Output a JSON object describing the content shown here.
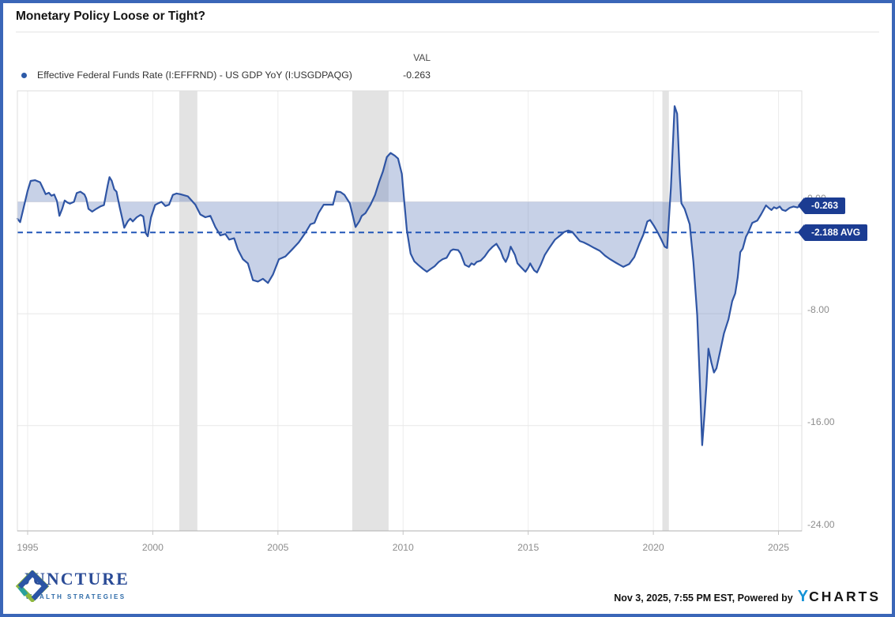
{
  "window": {
    "border_color": "#3a66b8"
  },
  "header": {
    "title": "Monetary Policy Loose or Tight?"
  },
  "legend": {
    "val_header": "VAL",
    "series_label": "Effective Federal Funds Rate (I:EFFRND) - US GDP YoY (I:USGDPAQG)",
    "series_value": "-0.263",
    "dot_color": "#2d5aa8"
  },
  "chart_data": {
    "type": "area",
    "title": "Monetary Policy Loose or Tight?",
    "series_name": "Effective Federal Funds Rate (I:EFFRND) - US GDP YoY (I:USGDPAQG)",
    "xlabel": "",
    "ylabel": "",
    "grid": true,
    "legend_position": "top-left",
    "xlim": [
      1994.59,
      2025.93
    ],
    "ylim": [
      -23.53,
      7.94
    ],
    "x_ticks": [
      1995,
      2000,
      2005,
      2010,
      2015,
      2020,
      2025
    ],
    "x_tick_labels": [
      "1995",
      "2000",
      "2005",
      "2010",
      "2015",
      "2020",
      "2025"
    ],
    "y_ticks": [
      0,
      -8,
      -16,
      -24
    ],
    "y_tick_labels": [
      "0.00",
      "-8.00",
      "-16.00",
      "-24.00"
    ],
    "average": -2.188,
    "average_label": "-2.188 AVG",
    "last_value": -0.263,
    "last_value_label": "-0.263",
    "recession_bands": [
      [
        2001.06,
        2001.78
      ],
      [
        2007.97,
        2009.42
      ],
      [
        2020.36,
        2020.62
      ]
    ],
    "line_color": "#2f55a4",
    "fill_color": "rgba(86,116,183,0.33)",
    "band_color": "#e3e3e3",
    "avg_line_color": "#2257b8",
    "badge_color": "#1b3c92",
    "x": [
      1994.59,
      1994.7,
      1994.8,
      1995.0,
      1995.12,
      1995.3,
      1995.5,
      1995.63,
      1995.72,
      1995.85,
      1995.95,
      1996.06,
      1996.17,
      1996.27,
      1996.38,
      1996.48,
      1996.59,
      1996.69,
      1996.85,
      1996.96,
      1997.11,
      1997.27,
      1997.34,
      1997.43,
      1997.58,
      1997.74,
      1997.9,
      1998.05,
      1998.2,
      1998.27,
      1998.36,
      1998.46,
      1998.55,
      1998.67,
      1998.78,
      1998.86,
      1999.0,
      1999.1,
      1999.2,
      1999.36,
      1999.51,
      1999.62,
      1999.72,
      1999.8,
      1999.93,
      2000.09,
      2000.19,
      2000.35,
      2000.5,
      2000.65,
      2000.8,
      2000.95,
      2001.1,
      2001.4,
      2001.7,
      2001.9,
      2002.1,
      2002.3,
      2002.5,
      2002.7,
      2002.9,
      2003.05,
      2003.25,
      2003.4,
      2003.6,
      2003.8,
      2004.0,
      2004.2,
      2004.4,
      2004.6,
      2004.8,
      2005.04,
      2005.3,
      2005.57,
      2005.83,
      2006.1,
      2006.3,
      2006.46,
      2006.62,
      2006.83,
      2007.0,
      2007.2,
      2007.33,
      2007.5,
      2007.66,
      2007.87,
      2008.1,
      2008.25,
      2008.35,
      2008.5,
      2008.7,
      2008.88,
      2009.04,
      2009.2,
      2009.35,
      2009.5,
      2009.67,
      2009.8,
      2009.95,
      2010.05,
      2010.15,
      2010.3,
      2010.45,
      2010.6,
      2010.8,
      2010.95,
      2011.1,
      2011.26,
      2011.42,
      2011.58,
      2011.74,
      2011.9,
      2012.0,
      2012.2,
      2012.3,
      2012.47,
      2012.63,
      2012.73,
      2012.84,
      2012.94,
      2013.1,
      2013.26,
      2013.42,
      2013.58,
      2013.73,
      2013.9,
      2014.0,
      2014.1,
      2014.2,
      2014.3,
      2014.47,
      2014.57,
      2014.73,
      2014.89,
      2015.0,
      2015.08,
      2015.14,
      2015.24,
      2015.35,
      2015.5,
      2015.66,
      2015.82,
      2016.07,
      2016.28,
      2016.44,
      2016.6,
      2016.76,
      2016.85,
      2017.06,
      2017.22,
      2017.44,
      2017.64,
      2017.86,
      2018.07,
      2018.27,
      2018.5,
      2018.65,
      2018.8,
      2019.03,
      2019.24,
      2019.44,
      2019.6,
      2019.76,
      2019.87,
      2020.02,
      2020.18,
      2020.32,
      2020.45,
      2020.55,
      2020.7,
      2020.85,
      2020.95,
      2021.05,
      2021.12,
      2021.25,
      2021.45,
      2021.6,
      2021.75,
      2021.85,
      2021.95,
      2022.05,
      2022.12,
      2022.2,
      2022.32,
      2022.42,
      2022.52,
      2022.68,
      2022.82,
      2023.0,
      2023.15,
      2023.27,
      2023.37,
      2023.47,
      2023.57,
      2023.7,
      2023.8,
      2023.95,
      2024.15,
      2024.3,
      2024.5,
      2024.62,
      2024.72,
      2024.82,
      2024.92,
      2025.05,
      2025.15,
      2025.28,
      2025.45,
      2025.6,
      2025.75,
      2025.9
    ],
    "values": [
      -1.2,
      -1.45,
      -0.7,
      0.8,
      1.5,
      1.55,
      1.4,
      0.9,
      0.55,
      0.65,
      0.44,
      0.53,
      0.06,
      -1.0,
      -0.5,
      0.1,
      -0.05,
      -0.13,
      0.0,
      0.63,
      0.73,
      0.53,
      0.25,
      -0.5,
      -0.7,
      -0.5,
      -0.33,
      -0.23,
      1.2,
      1.77,
      1.5,
      0.9,
      0.73,
      -0.33,
      -1.2,
      -1.85,
      -1.4,
      -1.2,
      -1.4,
      -1.1,
      -0.93,
      -1.05,
      -2.23,
      -2.46,
      -1.1,
      -0.23,
      -0.13,
      0.0,
      -0.3,
      -0.2,
      0.5,
      0.6,
      0.55,
      0.4,
      -0.2,
      -0.9,
      -1.1,
      -1.0,
      -1.8,
      -2.4,
      -2.3,
      -2.7,
      -2.6,
      -3.4,
      -4.1,
      -4.4,
      -5.6,
      -5.7,
      -5.5,
      -5.8,
      -5.2,
      -4.1,
      -3.9,
      -3.4,
      -2.9,
      -2.2,
      -1.6,
      -1.5,
      -0.8,
      -0.2,
      -0.2,
      -0.2,
      0.75,
      0.7,
      0.5,
      -0.1,
      -1.8,
      -1.4,
      -1.0,
      -0.8,
      -0.2,
      0.5,
      1.4,
      2.2,
      3.2,
      3.5,
      3.3,
      3.1,
      2.0,
      0.0,
      -2.0,
      -3.7,
      -4.25,
      -4.5,
      -4.8,
      -5.0,
      -4.8,
      -4.6,
      -4.3,
      -4.1,
      -4.0,
      -3.5,
      -3.4,
      -3.45,
      -3.7,
      -4.5,
      -4.65,
      -4.4,
      -4.5,
      -4.3,
      -4.2,
      -3.9,
      -3.5,
      -3.2,
      -3.0,
      -3.5,
      -4.0,
      -4.3,
      -3.9,
      -3.2,
      -3.8,
      -4.4,
      -4.7,
      -5.0,
      -4.7,
      -4.4,
      -4.6,
      -4.9,
      -5.05,
      -4.5,
      -3.8,
      -3.35,
      -2.7,
      -2.4,
      -2.15,
      -2.05,
      -2.15,
      -2.35,
      -2.8,
      -2.9,
      -3.1,
      -3.3,
      -3.5,
      -3.85,
      -4.1,
      -4.35,
      -4.5,
      -4.65,
      -4.45,
      -3.95,
      -3.0,
      -2.35,
      -1.4,
      -1.3,
      -1.7,
      -2.2,
      -2.7,
      -3.2,
      -3.3,
      1.0,
      6.85,
      6.3,
      2.0,
      -0.1,
      -0.5,
      -1.6,
      -4.3,
      -8.1,
      -12.5,
      -17.4,
      -15.0,
      -13.1,
      -10.5,
      -11.5,
      -12.2,
      -11.9,
      -10.6,
      -9.4,
      -8.4,
      -7.1,
      -6.55,
      -5.4,
      -3.6,
      -3.35,
      -2.5,
      -2.15,
      -1.5,
      -1.34,
      -0.9,
      -0.25,
      -0.45,
      -0.58,
      -0.38,
      -0.47,
      -0.33,
      -0.57,
      -0.65,
      -0.42,
      -0.33,
      -0.4,
      -0.263
    ]
  },
  "footer": {
    "brand_name": "JUNCTURE",
    "brand_tagline": "WEALTH STRATEGIES",
    "timestamp": "Nov 3, 2025, 7:55 PM EST",
    "powered_by": "Powered by",
    "ycharts_y": "Y",
    "ycharts_rest": "CHARTS"
  }
}
